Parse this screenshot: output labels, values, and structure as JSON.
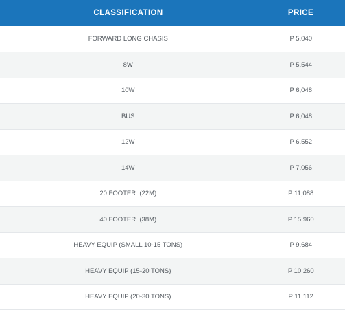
{
  "table": {
    "headers": {
      "classification": "CLASSIFICATION",
      "price": "PRICE"
    },
    "rows": [
      {
        "classification": "FORWARD LONG CHASIS",
        "price": "P 5,040"
      },
      {
        "classification": "8W",
        "price": "P 5,544"
      },
      {
        "classification": "10W",
        "price": "P 6,048"
      },
      {
        "classification": "BUS",
        "price": "P 6,048"
      },
      {
        "classification": "12W",
        "price": "P 6,552"
      },
      {
        "classification": "14W",
        "price": "P 7,056"
      },
      {
        "classification": "20 FOOTER  (22M)",
        "price": "P 11,088"
      },
      {
        "classification": "40 FOOTER  (38M)",
        "price": "P 15,960"
      },
      {
        "classification": "HEAVY EQUIP (SMALL 10-15 TONS)",
        "price": "P 9,684"
      },
      {
        "classification": "HEAVY EQUIP (15-20 TONS)",
        "price": "P 10,260"
      },
      {
        "classification": "HEAVY EQUIP (20-30 TONS)",
        "price": "P 11,112"
      }
    ],
    "colors": {
      "header_bg": "#1b75bb",
      "header_text": "#ffffff",
      "row_alt_bg": "#f3f5f5",
      "cell_text": "#555b61"
    }
  }
}
